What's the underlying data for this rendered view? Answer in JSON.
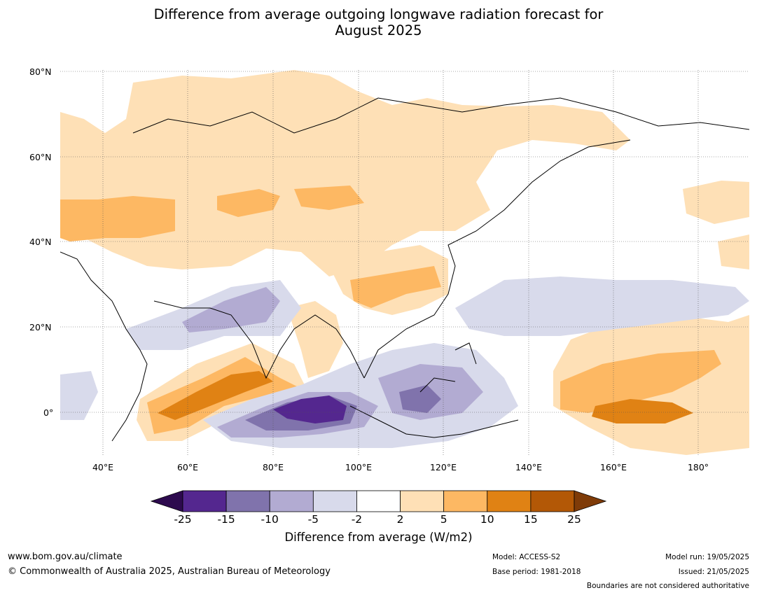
{
  "title_line1": "Difference from average outgoing longwave radiation forecast for",
  "title_line2": "August 2025",
  "lat_labels": [
    "80°N",
    "60°N",
    "40°N",
    "20°N",
    "0°"
  ],
  "lon_labels": [
    "40°E",
    "60°E",
    "80°E",
    "100°E",
    "120°E",
    "140°E",
    "160°E",
    "180°"
  ],
  "colorbar": {
    "ticks": [
      "-25",
      "-15",
      "-10",
      "-5",
      "-2",
      "2",
      "5",
      "10",
      "15",
      "25"
    ],
    "colors": [
      "#2d0a4e",
      "#54278f",
      "#8073ac",
      "#b2abd2",
      "#d8daeb",
      "#ffffff",
      "#fee0b6",
      "#fdb863",
      "#e08214",
      "#b35806",
      "#7f3b08"
    ],
    "label": "Difference from average (W/m2)"
  },
  "footer": {
    "url": "www.bom.gov.au/climate",
    "copyright": "© Commonwealth of Australia 2025, Australian Bureau of Meteorology",
    "model": "Model: ACCESS-S2",
    "base_period": "Base period: 1981-2018",
    "model_run": "Model run: 19/05/2025",
    "issued": "Issued: 21/05/2025",
    "disclaimer": "Boundaries are not considered authoritative"
  }
}
